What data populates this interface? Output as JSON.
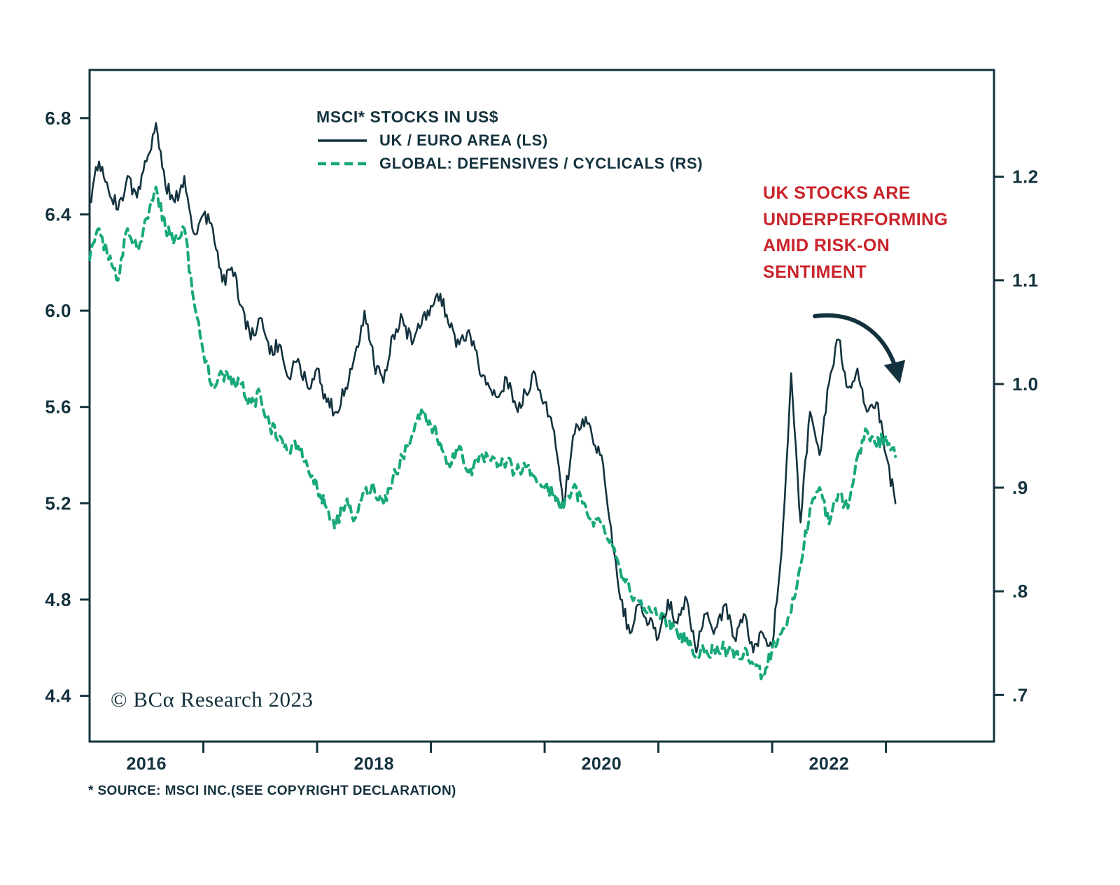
{
  "chart_data": {
    "type": "line",
    "title": "MSCI* STOCKS IN US$",
    "axis_color": "#14323e",
    "grid": false,
    "legend_position": "top-left-inside",
    "x_start": 2015.5,
    "x_step": 0.0833333,
    "xlim": [
      2015.5,
      2023.45
    ],
    "ylim_left": [
      4.21,
      7.0
    ],
    "ylim_right": [
      0.655,
      1.303
    ],
    "left_axis": {
      "tick_values": [
        6.8,
        6.4,
        6.0,
        5.6,
        5.2,
        4.8,
        4.4
      ],
      "tick_labels": [
        "6.8",
        "6.4",
        "6.0",
        "5.6",
        "5.2",
        "4.8",
        "4.4"
      ]
    },
    "right_axis": {
      "tick_values": [
        1.2,
        1.1,
        1.0,
        0.9,
        0.8,
        0.7
      ],
      "tick_labels": [
        "1.2",
        "1.1",
        "1.0",
        ".9",
        ".8",
        ".7"
      ]
    },
    "x_axis": {
      "year_tick_values": [
        2016,
        2018,
        2020,
        2022
      ],
      "year_tick_labels": [
        "2016",
        "2018",
        "2020",
        "2022"
      ],
      "minor_tick_values": [
        2016.5,
        2017.5,
        2018.5,
        2019.5,
        2020.5,
        2021.5,
        2022.5
      ]
    },
    "series": [
      {
        "name": "UK / EURO AREA (LS)",
        "axis": "left",
        "style": "solid",
        "color": "#14323e",
        "jitter": 0.035,
        "values": [
          6.45,
          6.62,
          6.5,
          6.42,
          6.56,
          6.47,
          6.62,
          6.78,
          6.52,
          6.45,
          6.56,
          6.32,
          6.4,
          6.34,
          6.12,
          6.18,
          6.02,
          5.88,
          5.97,
          5.82,
          5.86,
          5.72,
          5.8,
          5.68,
          5.76,
          5.62,
          5.58,
          5.68,
          5.82,
          6.0,
          5.78,
          5.7,
          5.9,
          5.97,
          5.86,
          5.94,
          6.02,
          6.07,
          5.93,
          5.86,
          5.92,
          5.78,
          5.7,
          5.64,
          5.72,
          5.6,
          5.66,
          5.74,
          5.62,
          5.5,
          5.18,
          5.48,
          5.55,
          5.48,
          5.4,
          5.1,
          4.8,
          4.66,
          4.78,
          4.7,
          4.64,
          4.8,
          4.7,
          4.8,
          4.58,
          4.74,
          4.68,
          4.78,
          4.64,
          4.74,
          4.58,
          4.66,
          4.6,
          5.0,
          5.74,
          5.12,
          5.58,
          5.4,
          5.7,
          5.88,
          5.68,
          5.76,
          5.58,
          5.62,
          5.4,
          5.2
        ]
      },
      {
        "name": "GLOBAL: DEFENSIVES / CYCLICALS (RS)",
        "axis": "right",
        "style": "dashed",
        "color": "#18a87b",
        "jitter": 0.007,
        "values": [
          1.12,
          1.15,
          1.12,
          1.1,
          1.15,
          1.13,
          1.16,
          1.19,
          1.15,
          1.14,
          1.15,
          1.08,
          1.03,
          1.0,
          1.01,
          1.0,
          1.0,
          0.98,
          0.99,
          0.96,
          0.95,
          0.935,
          0.94,
          0.92,
          0.9,
          0.88,
          0.865,
          0.885,
          0.87,
          0.895,
          0.9,
          0.885,
          0.91,
          0.93,
          0.95,
          0.975,
          0.96,
          0.945,
          0.92,
          0.94,
          0.915,
          0.925,
          0.93,
          0.92,
          0.925,
          0.915,
          0.92,
          0.91,
          0.9,
          0.895,
          0.88,
          0.9,
          0.885,
          0.87,
          0.865,
          0.85,
          0.82,
          0.8,
          0.79,
          0.785,
          0.775,
          0.77,
          0.76,
          0.755,
          0.735,
          0.745,
          0.74,
          0.745,
          0.735,
          0.74,
          0.73,
          0.72,
          0.745,
          0.76,
          0.78,
          0.825,
          0.88,
          0.9,
          0.865,
          0.895,
          0.88,
          0.93,
          0.955,
          0.94,
          0.95,
          0.93
        ]
      }
    ],
    "annotation": {
      "text": "UK STOCKS ARE\nUNDERPERFORMING\nAMID RISK-ON\nSENTIMENT",
      "color": "#c9232a"
    },
    "copyright": "© BCα Research 2023",
    "footnote": "* SOURCE: MSCI INC.(SEE COPYRIGHT DECLARATION)"
  }
}
